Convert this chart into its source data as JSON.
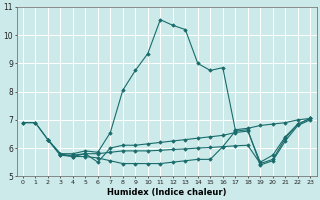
{
  "xlabel": "Humidex (Indice chaleur)",
  "ylabel": "",
  "bg_color": "#cceaea",
  "grid_color": "#ffffff",
  "line_color": "#1a6b6b",
  "xlim": [
    -0.5,
    23.5
  ],
  "ylim": [
    5,
    11
  ],
  "yticks": [
    5,
    6,
    7,
    8,
    9,
    10,
    11
  ],
  "xticks": [
    0,
    1,
    2,
    3,
    4,
    5,
    6,
    7,
    8,
    9,
    10,
    11,
    12,
    13,
    14,
    15,
    16,
    17,
    18,
    19,
    20,
    21,
    22,
    23
  ],
  "lines": [
    {
      "x": [
        0,
        1,
        2,
        3,
        4,
        5,
        6,
        7,
        8,
        9,
        10,
        11,
        12,
        13,
        14,
        15,
        16,
        17,
        18,
        19,
        20,
        21,
        22,
        23
      ],
      "y": [
        6.9,
        6.9,
        6.3,
        5.8,
        5.8,
        5.9,
        5.85,
        6.55,
        8.05,
        8.75,
        9.35,
        10.55,
        10.35,
        10.2,
        9.0,
        8.75,
        8.85,
        6.65,
        6.7,
        6.8,
        6.85,
        6.9,
        7.0,
        7.05
      ]
    },
    {
      "x": [
        0,
        1,
        2,
        3,
        4,
        5,
        6,
        7,
        8,
        9,
        10,
        11,
        12,
        13,
        14,
        15,
        16,
        17,
        18,
        19,
        20,
        21,
        22,
        23
      ],
      "y": [
        6.9,
        6.9,
        6.3,
        5.8,
        5.7,
        5.8,
        5.5,
        6.0,
        6.1,
        6.1,
        6.15,
        6.2,
        6.25,
        6.3,
        6.35,
        6.4,
        6.45,
        6.55,
        6.6,
        5.5,
        5.75,
        6.4,
        6.85,
        7.05
      ]
    },
    {
      "x": [
        2,
        3,
        4,
        5,
        6,
        7,
        8,
        9,
        10,
        11,
        12,
        13,
        14,
        15,
        16,
        17,
        18,
        19,
        20,
        21,
        22,
        23
      ],
      "y": [
        6.3,
        5.75,
        5.75,
        5.8,
        5.8,
        5.85,
        5.9,
        5.9,
        5.9,
        5.92,
        5.95,
        5.97,
        6.0,
        6.02,
        6.05,
        6.08,
        6.1,
        5.45,
        5.6,
        6.35,
        6.85,
        7.05
      ]
    },
    {
      "x": [
        2,
        3,
        4,
        5,
        6,
        7,
        8,
        9,
        10,
        11,
        12,
        13,
        14,
        15,
        16,
        17,
        18,
        19,
        20,
        21,
        22,
        23
      ],
      "y": [
        6.3,
        5.75,
        5.7,
        5.7,
        5.65,
        5.55,
        5.45,
        5.45,
        5.45,
        5.45,
        5.5,
        5.55,
        5.6,
        5.6,
        6.05,
        6.6,
        6.65,
        5.4,
        5.55,
        6.25,
        6.8,
        7.0
      ]
    }
  ]
}
